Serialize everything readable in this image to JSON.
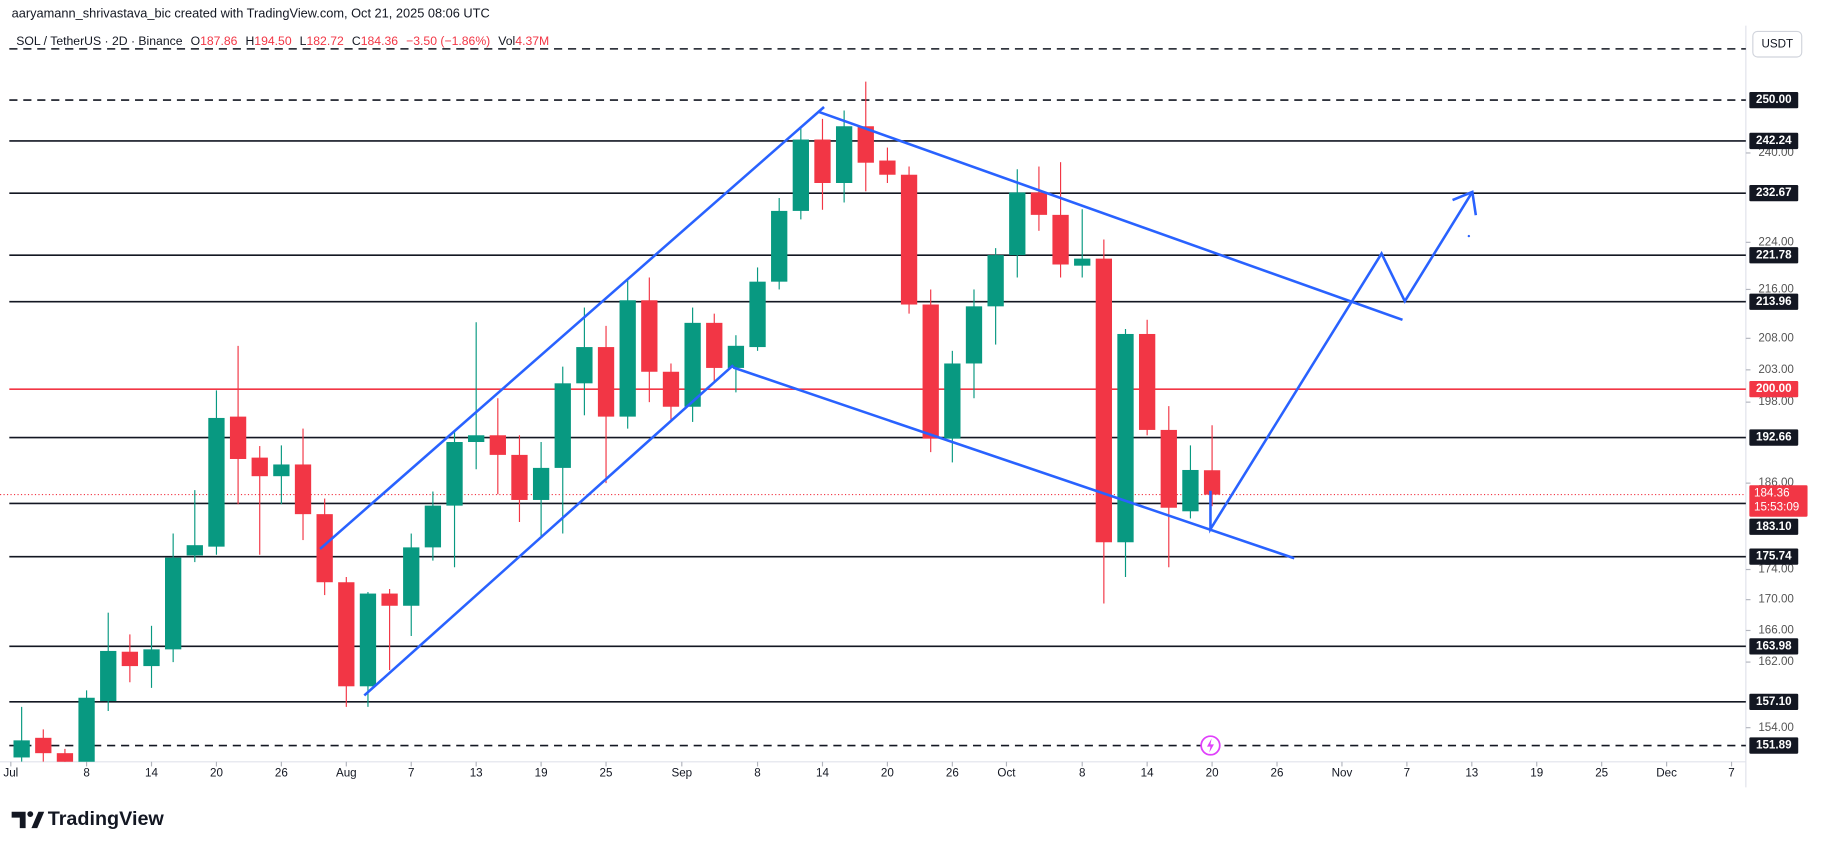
{
  "chart_data": {
    "type": "candlestick",
    "credit": "aaryamann_shrivastava_bic created with TradingView.com, Oct 21, 2025 08:06 UTC",
    "legend": {
      "symbol": "SOL / TetherUS · 2D · Binance",
      "items": [
        {
          "key": "O",
          "value": "187.86"
        },
        {
          "key": "H",
          "value": "194.50"
        },
        {
          "key": "L",
          "value": "182.72"
        },
        {
          "key": "C",
          "value": "184.36"
        }
      ],
      "change": "−3.50 (−1.86%)",
      "vol_key": "Vol",
      "vol_value": "4.37M"
    },
    "currency": "USDT",
    "brand": "TradingView",
    "up_color": "#089981",
    "down_color": "#f23645",
    "log_scale": true,
    "grid": false,
    "x": [
      "2025-07-02",
      "2025-07-04",
      "2025-07-06",
      "2025-07-08",
      "2025-07-10",
      "2025-07-12",
      "2025-07-14",
      "2025-07-16",
      "2025-07-18",
      "2025-07-20",
      "2025-07-22",
      "2025-07-24",
      "2025-07-26",
      "2025-07-28",
      "2025-07-30",
      "2025-08-01",
      "2025-08-03",
      "2025-08-05",
      "2025-08-07",
      "2025-08-09",
      "2025-08-11",
      "2025-08-13",
      "2025-08-15",
      "2025-08-17",
      "2025-08-19",
      "2025-08-21",
      "2025-08-23",
      "2025-08-25",
      "2025-08-27",
      "2025-08-29",
      "2025-08-31",
      "2025-09-02",
      "2025-09-04",
      "2025-09-06",
      "2025-09-08",
      "2025-09-10",
      "2025-09-12",
      "2025-09-14",
      "2025-09-16",
      "2025-09-18",
      "2025-09-20",
      "2025-09-22",
      "2025-09-24",
      "2025-09-26",
      "2025-09-28",
      "2025-09-30",
      "2025-10-02",
      "2025-10-04",
      "2025-10-06",
      "2025-10-08",
      "2025-10-10",
      "2025-10-12",
      "2025-10-14",
      "2025-10-16",
      "2025-10-18",
      "2025-10-20"
    ],
    "open": [
      150.5,
      152.8,
      151,
      149.5,
      157.2,
      163.3,
      161.5,
      163.6,
      175.9,
      177.1,
      195.8,
      189.7,
      187,
      188.7,
      181.6,
      172.3,
      159,
      170.8,
      169.2,
      177,
      182.8,
      192,
      193,
      190.1,
      183.6,
      188.2,
      200.9,
      206.6,
      195.8,
      214.2,
      202.7,
      197.3,
      210.5,
      203.3,
      206.6,
      217.3,
      229.5,
      242.5,
      234.5,
      245,
      238.6,
      236,
      213.5,
      192.5,
      204,
      213.2,
      221.8,
      232.8,
      228.8,
      220,
      221.2,
      177.7,
      208.7,
      193.8,
      182,
      187.86
    ],
    "high": [
      156.5,
      153.8,
      151.5,
      158.5,
      168.3,
      165.5,
      166.6,
      178.9,
      185,
      199.8,
      206.8,
      191.4,
      191.5,
      194,
      183.8,
      173,
      171,
      171.4,
      178.9,
      184.8,
      193.5,
      210.6,
      198.6,
      193,
      192,
      203.5,
      213,
      210,
      217.5,
      218,
      204,
      213,
      212,
      208.5,
      219.7,
      231.8,
      245,
      246.4,
      248,
      253.6,
      241,
      237.5,
      216,
      206,
      216,
      223,
      237,
      237.5,
      238.3,
      229.8,
      224.5,
      209.5,
      211,
      197.4,
      191.5,
      194.5
    ],
    "low": [
      150,
      150,
      148,
      148,
      156,
      159.5,
      158.8,
      162,
      175,
      176,
      183,
      176,
      183,
      178,
      170.6,
      156.5,
      156.5,
      161,
      165.3,
      175.2,
      174.3,
      188,
      184.4,
      180.5,
      178.4,
      178.9,
      196,
      186,
      194,
      198,
      195,
      195,
      201,
      199.5,
      206,
      216,
      228,
      229.7,
      231,
      233,
      234.5,
      212,
      190.5,
      189,
      198.6,
      207,
      218,
      226,
      218,
      218,
      169.5,
      173,
      193,
      174.3,
      181,
      182.72
    ],
    "close": [
      152.5,
      151,
      149.5,
      157.6,
      163.4,
      161.5,
      163.6,
      175.6,
      177.3,
      195.6,
      189.5,
      187,
      188.7,
      181.6,
      172.3,
      159,
      170.8,
      169.2,
      177,
      182.8,
      192,
      193,
      190.1,
      183.6,
      188.2,
      200.9,
      206.6,
      195.8,
      214.2,
      202.7,
      197.3,
      210.5,
      203.3,
      206.8,
      217.3,
      229.5,
      242.5,
      234.5,
      245,
      238.2,
      236,
      213.5,
      192.5,
      204,
      213.2,
      221.8,
      232.8,
      228.8,
      220.2,
      221.2,
      177.7,
      208.7,
      193.8,
      182.5,
      187.9,
      184.36
    ],
    "countdown": "15:53:09",
    "xlim": [
      "2025-06-30",
      "2025-12-08"
    ],
    "xticks": [
      {
        "value": "2025-07-01",
        "label": "Jul"
      },
      {
        "value": "2025-07-08",
        "label": "8"
      },
      {
        "value": "2025-07-14",
        "label": "14"
      },
      {
        "value": "2025-07-20",
        "label": "20"
      },
      {
        "value": "2025-07-26",
        "label": "26"
      },
      {
        "value": "2025-08-01",
        "label": "Aug"
      },
      {
        "value": "2025-08-07",
        "label": "7"
      },
      {
        "value": "2025-08-13",
        "label": "13"
      },
      {
        "value": "2025-08-19",
        "label": "19"
      },
      {
        "value": "2025-08-25",
        "label": "25"
      },
      {
        "value": "2025-09-01",
        "label": "Sep"
      },
      {
        "value": "2025-09-08",
        "label": "8"
      },
      {
        "value": "2025-09-14",
        "label": "14"
      },
      {
        "value": "2025-09-20",
        "label": "20"
      },
      {
        "value": "2025-09-26",
        "label": "26"
      },
      {
        "value": "2025-10-01",
        "label": "Oct"
      },
      {
        "value": "2025-10-08",
        "label": "8"
      },
      {
        "value": "2025-10-14",
        "label": "14"
      },
      {
        "value": "2025-10-20",
        "label": "20"
      },
      {
        "value": "2025-10-26",
        "label": "26"
      },
      {
        "value": "2025-11-01",
        "label": "Nov"
      },
      {
        "value": "2025-11-07",
        "label": "7"
      },
      {
        "value": "2025-11-13",
        "label": "13"
      },
      {
        "value": "2025-11-19",
        "label": "19"
      },
      {
        "value": "2025-11-25",
        "label": "25"
      },
      {
        "value": "2025-12-01",
        "label": "Dec"
      },
      {
        "value": "2025-12-07",
        "label": "7"
      }
    ],
    "ylim": [
      150,
      264.8
    ],
    "yticks": [
      {
        "value": 154,
        "label": "154.00"
      },
      {
        "value": 162,
        "label": "162.00"
      },
      {
        "value": 166,
        "label": "166.00"
      },
      {
        "value": 170,
        "label": "170.00"
      },
      {
        "value": 174,
        "label": "174.00"
      },
      {
        "value": 186,
        "label": "186.00"
      },
      {
        "value": 198,
        "label": "198.00"
      },
      {
        "value": 203,
        "label": "203.00"
      },
      {
        "value": 208,
        "label": "208.00"
      },
      {
        "value": 216,
        "label": "216.00"
      },
      {
        "value": 224,
        "label": "224.00"
      },
      {
        "value": 240,
        "label": "240.00"
      }
    ],
    "levels": [
      {
        "value": 250,
        "label": "250.00",
        "color": "#131722",
        "style": "dashed"
      },
      {
        "value": 242.24,
        "label": "242.24",
        "color": "#131722",
        "style": "solid"
      },
      {
        "value": 232.67,
        "label": "232.67",
        "color": "#131722",
        "style": "solid"
      },
      {
        "value": 221.78,
        "label": "221.78",
        "color": "#131722",
        "style": "solid"
      },
      {
        "value": 213.96,
        "label": "213.96",
        "color": "#131722",
        "style": "solid"
      },
      {
        "value": 200,
        "label": "200.00",
        "color": "#f23645",
        "style": "solid"
      },
      {
        "value": 192.66,
        "label": "192.66",
        "color": "#131722",
        "style": "solid"
      },
      {
        "value": 183.1,
        "label": "183.10",
        "color": "#131722",
        "style": "solid"
      },
      {
        "value": 175.74,
        "label": "175.74",
        "color": "#131722",
        "style": "solid"
      },
      {
        "value": 163.98,
        "label": "163.98",
        "color": "#131722",
        "style": "solid"
      },
      {
        "value": 157.1,
        "label": "157.10",
        "color": "#131722",
        "style": "solid"
      },
      {
        "value": 151.89,
        "label": "151.89",
        "color": "#131722",
        "style": "dashed"
      }
    ]
  }
}
